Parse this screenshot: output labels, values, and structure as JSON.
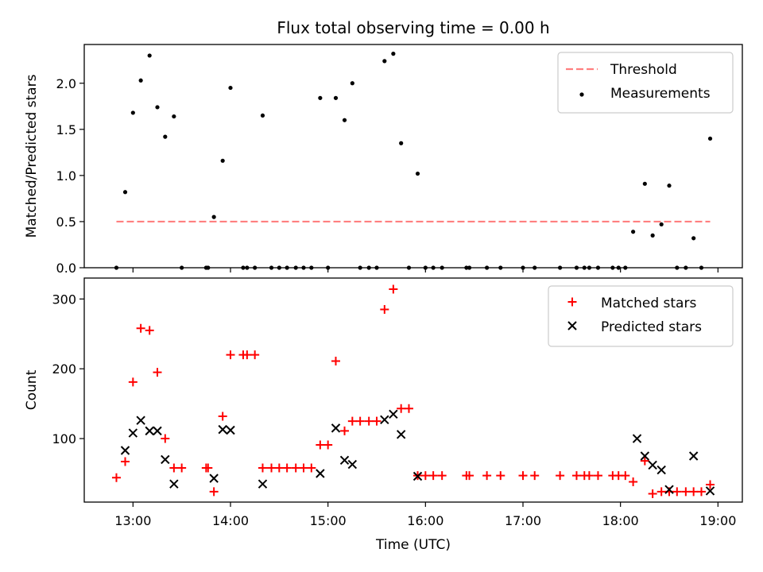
{
  "title": "Flux total observing time = 0.00 h",
  "xlabel": "Time (UTC)",
  "chart_data": [
    {
      "type": "scatter",
      "ylabel": "Matched/Predicted stars",
      "xlim": [
        12.5,
        19.25
      ],
      "ylim": [
        0,
        2.42
      ],
      "yticks": [
        0.0,
        0.5,
        1.0,
        1.5,
        2.0
      ],
      "ytick_labels": [
        "0.0",
        "0.5",
        "1.0",
        "1.5",
        "2.0"
      ],
      "legend_position": "top-right",
      "threshold": {
        "name": "Threshold",
        "value": 0.5,
        "x": [
          12.83,
          18.92
        ],
        "color": "#ff7f7f"
      },
      "series": [
        {
          "name": "Measurements",
          "color": "#000000",
          "marker": "dot",
          "x": [
            12.83,
            12.92,
            13.0,
            13.08,
            13.17,
            13.25,
            13.33,
            13.42,
            13.5,
            13.75,
            13.77,
            13.83,
            13.92,
            14.0,
            14.13,
            14.17,
            14.25,
            14.33,
            14.42,
            14.5,
            14.58,
            14.67,
            14.75,
            14.83,
            14.92,
            15.0,
            15.08,
            15.17,
            15.25,
            15.33,
            15.42,
            15.5,
            15.58,
            15.67,
            15.75,
            15.83,
            15.92,
            16.0,
            16.08,
            16.17,
            16.42,
            16.45,
            16.63,
            16.77,
            17.0,
            17.12,
            17.38,
            17.55,
            17.63,
            17.68,
            17.77,
            17.92,
            17.98,
            18.05,
            18.13,
            18.25,
            18.33,
            18.42,
            18.5,
            18.58,
            18.67,
            18.75,
            18.83,
            18.92
          ],
          "y": [
            0.0,
            0.82,
            1.68,
            2.03,
            2.3,
            1.74,
            1.42,
            1.64,
            0.0,
            0.0,
            0.0,
            0.55,
            1.16,
            1.95,
            0.0,
            0.0,
            0.0,
            1.65,
            0.0,
            0.0,
            0.0,
            0.0,
            0.0,
            0.0,
            1.84,
            0.0,
            1.84,
            1.6,
            2.0,
            0.0,
            0.0,
            0.0,
            2.24,
            2.32,
            1.35,
            0.0,
            1.02,
            0.0,
            0.0,
            0.0,
            0.0,
            0.0,
            0.0,
            0.0,
            0.0,
            0.0,
            0.0,
            0.0,
            0.0,
            0.0,
            0.0,
            0.0,
            0.0,
            0.0,
            0.39,
            0.91,
            0.35,
            0.47,
            0.89,
            0.0,
            0.0,
            0.32,
            0.0,
            1.4
          ]
        }
      ]
    },
    {
      "type": "scatter",
      "ylabel": "Count",
      "xlim": [
        12.5,
        19.25
      ],
      "ylim": [
        9,
        330
      ],
      "yticks": [
        100,
        200,
        300
      ],
      "ytick_labels": [
        "100",
        "200",
        "300"
      ],
      "xticks": [
        13,
        14,
        15,
        16,
        17,
        18,
        19
      ],
      "xtick_labels": [
        "13:00",
        "14:00",
        "15:00",
        "16:00",
        "17:00",
        "18:00",
        "19:00"
      ],
      "legend_position": "top-right",
      "series": [
        {
          "name": "Matched stars",
          "color": "#ff0000",
          "marker": "plus",
          "x": [
            12.83,
            12.92,
            13.0,
            13.08,
            13.17,
            13.25,
            13.33,
            13.42,
            13.5,
            13.75,
            13.77,
            13.83,
            13.92,
            14.0,
            14.13,
            14.17,
            14.25,
            14.33,
            14.42,
            14.5,
            14.58,
            14.67,
            14.75,
            14.83,
            14.92,
            15.0,
            15.08,
            15.17,
            15.25,
            15.33,
            15.42,
            15.5,
            15.58,
            15.67,
            15.75,
            15.83,
            15.92,
            16.0,
            16.08,
            16.17,
            16.42,
            16.45,
            16.63,
            16.77,
            17.0,
            17.12,
            17.38,
            17.55,
            17.63,
            17.68,
            17.77,
            17.92,
            17.98,
            18.05,
            18.13,
            18.25,
            18.33,
            18.42,
            18.5,
            18.58,
            18.67,
            18.75,
            18.83,
            18.92
          ],
          "y": [
            44,
            67,
            181,
            258,
            255,
            195,
            100,
            58,
            58,
            58,
            58,
            24,
            132,
            220,
            220,
            220,
            220,
            58,
            58,
            58,
            58,
            58,
            58,
            58,
            91,
            91,
            211,
            111,
            125,
            125,
            125,
            125,
            285,
            314,
            143,
            143,
            47,
            47,
            47,
            47,
            47,
            47,
            47,
            47,
            47,
            47,
            47,
            47,
            47,
            47,
            47,
            47,
            47,
            47,
            38,
            68,
            21,
            24,
            24,
            24,
            24,
            24,
            24,
            34
          ]
        },
        {
          "name": "Predicted stars",
          "color": "#000000",
          "marker": "x",
          "x": [
            12.92,
            13.0,
            13.08,
            13.17,
            13.25,
            13.33,
            13.42,
            13.83,
            13.92,
            14.0,
            14.33,
            14.92,
            15.08,
            15.17,
            15.25,
            15.58,
            15.67,
            15.75,
            15.92,
            18.17,
            18.25,
            18.33,
            18.42,
            18.5,
            18.75,
            18.92
          ],
          "y": [
            83,
            108,
            126,
            111,
            111,
            70,
            35,
            43,
            113,
            112,
            35,
            50,
            115,
            69,
            63,
            127,
            135,
            106,
            46,
            100,
            75,
            62,
            55,
            27,
            75,
            25
          ]
        }
      ]
    }
  ]
}
